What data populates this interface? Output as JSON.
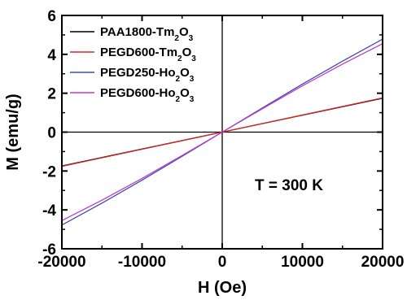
{
  "chart_data": {
    "type": "line",
    "xlabel": "H (Oe)",
    "ylabel": "M (emu/g)",
    "xlim": [
      -20000,
      20000
    ],
    "ylim": [
      -6,
      6
    ],
    "x_ticks": [
      -20000,
      -10000,
      0,
      10000,
      20000
    ],
    "x_tick_labels": [
      "-20000",
      "-10000",
      "0",
      "10000",
      "20000"
    ],
    "y_ticks": [
      -6,
      -4,
      -2,
      0,
      2,
      4,
      6
    ],
    "y_tick_labels": [
      "-6",
      "-4",
      "-2",
      "0",
      "2",
      "4",
      "6"
    ],
    "zero_lines": true,
    "legend_position": "upper-left",
    "annotation": "T = 300 K",
    "series": [
      {
        "name": "PAA1800-Tm2O3",
        "label_parts": [
          {
            "t": "PAA1800-Tm"
          },
          {
            "t": "2",
            "sub": true
          },
          {
            "t": "O"
          },
          {
            "t": "3",
            "sub": true
          }
        ],
        "color": "#000000",
        "x": [
          -20000,
          20000
        ],
        "y": [
          -1.74,
          1.74
        ]
      },
      {
        "name": "PEGD600-Tm2O3",
        "label_parts": [
          {
            "t": "PEGD600-Tm"
          },
          {
            "t": "2",
            "sub": true
          },
          {
            "t": "O"
          },
          {
            "t": "3",
            "sub": true
          }
        ],
        "color": "#d62728",
        "x": [
          -20000,
          20000
        ],
        "y": [
          -1.76,
          1.76
        ]
      },
      {
        "name": "PEGD250-Ho2O3",
        "label_parts": [
          {
            "t": "PEGD250-Ho"
          },
          {
            "t": "2",
            "sub": true
          },
          {
            "t": "O"
          },
          {
            "t": "3",
            "sub": true
          }
        ],
        "color": "#3b4fb0",
        "x": [
          -20000,
          -15000,
          -10000,
          -5000,
          0,
          5000,
          10000,
          15000,
          20000
        ],
        "y": [
          -4.78,
          -3.65,
          -2.47,
          -1.24,
          0,
          1.24,
          2.47,
          3.65,
          4.78
        ]
      },
      {
        "name": "PEGD600-Ho2O3",
        "label_parts": [
          {
            "t": "PEGD600-Ho"
          },
          {
            "t": "2",
            "sub": true
          },
          {
            "t": "O"
          },
          {
            "t": "3",
            "sub": true
          }
        ],
        "color": "#c03cc8",
        "x": [
          -20000,
          -15000,
          -10000,
          -5000,
          0,
          5000,
          10000,
          15000,
          20000
        ],
        "y": [
          -4.55,
          -3.5,
          -2.38,
          -1.2,
          0,
          1.2,
          2.38,
          3.5,
          4.55
        ]
      }
    ]
  }
}
